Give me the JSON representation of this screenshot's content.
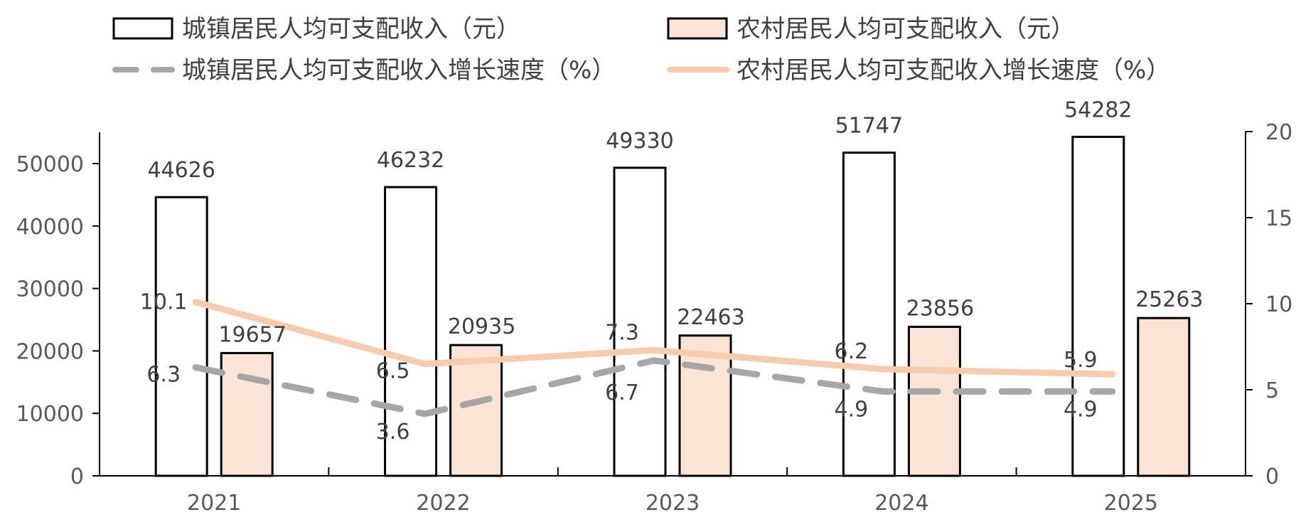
{
  "chart_data": {
    "type": "bar",
    "categories": [
      "2021",
      "2022",
      "2023",
      "2024",
      "2025"
    ],
    "series": [
      {
        "name": "城镇居民人均可支配收入（元）",
        "kind": "bar",
        "axis": "left",
        "fill": "#ffffff",
        "stroke": "#000000",
        "values": [
          44626,
          46232,
          49330,
          51747,
          54282
        ]
      },
      {
        "name": "农村居民人均可支配收入（元）",
        "kind": "bar",
        "axis": "left",
        "fill": "#fbe3d6",
        "stroke": "#000000",
        "values": [
          19657,
          20935,
          22463,
          23856,
          25263
        ]
      },
      {
        "name": "城镇居民人均可支配收入增长速度（%）",
        "kind": "line",
        "axis": "right",
        "style": "dashed",
        "color": "#a6a6a6",
        "values": [
          6.3,
          3.6,
          6.7,
          4.9,
          4.9
        ]
      },
      {
        "name": "农村居民人均可支配收入增长速度（%）",
        "kind": "line",
        "axis": "right",
        "style": "solid",
        "color": "#f8cbad",
        "values": [
          10.1,
          6.5,
          7.3,
          6.2,
          5.9
        ]
      }
    ],
    "left_axis": {
      "min": 0,
      "max": 55000,
      "ticks": [
        0,
        10000,
        20000,
        30000,
        40000,
        50000
      ]
    },
    "right_axis": {
      "min": 0,
      "max": 20,
      "ticks": [
        0,
        5,
        10,
        15,
        20
      ]
    },
    "grid": false,
    "legend_position": "top"
  }
}
